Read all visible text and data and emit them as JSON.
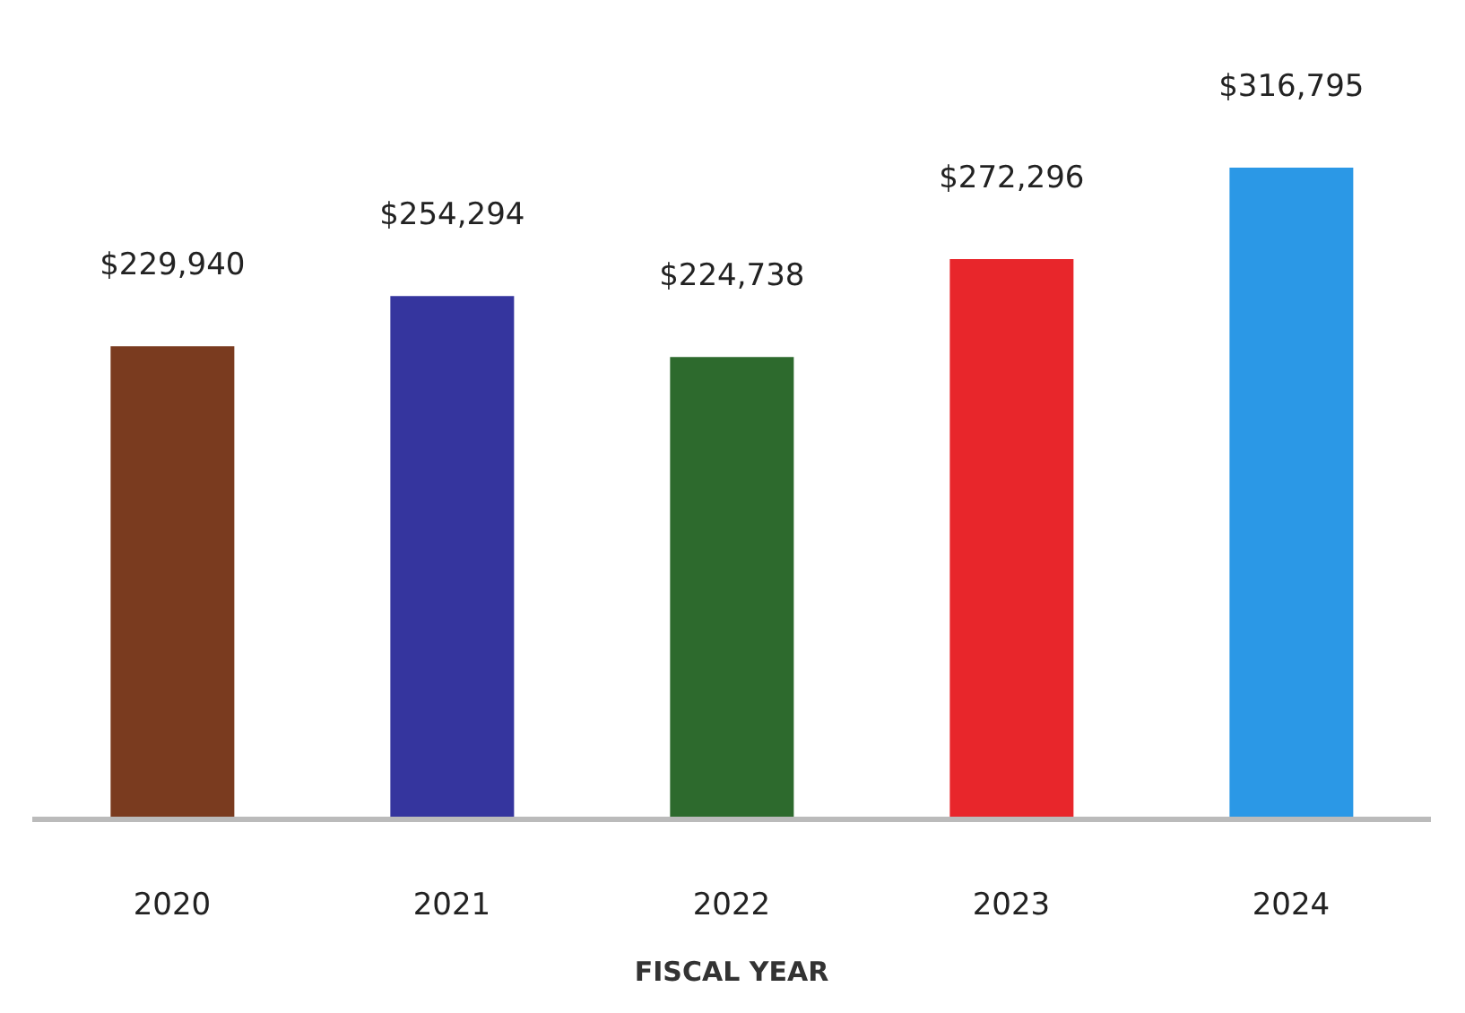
{
  "chart_data": {
    "type": "bar",
    "xlabel": "FISCAL YEAR",
    "categories": [
      "2020",
      "2021",
      "2022",
      "2023",
      "2024"
    ],
    "values": [
      229940,
      254294,
      224738,
      272296,
      316795
    ],
    "colors": [
      "#7a3b1f",
      "#35359e",
      "#2d6a2d",
      "#e8262b",
      "#2b98e6"
    ],
    "value_labels": [
      "$229,940",
      "$254,294",
      "$224,738",
      "$272,296",
      "$316,795"
    ]
  }
}
